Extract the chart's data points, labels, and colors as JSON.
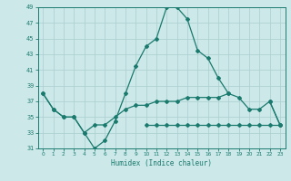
{
  "xlabel": "Humidex (Indice chaleur)",
  "x": [
    0,
    1,
    2,
    3,
    4,
    5,
    6,
    7,
    8,
    9,
    10,
    11,
    12,
    13,
    14,
    15,
    16,
    17,
    18,
    19,
    20,
    21,
    22,
    23
  ],
  "line1": [
    38,
    36,
    35,
    35,
    33,
    31,
    32,
    34.5,
    38,
    41.5,
    44,
    45,
    49,
    49,
    47.5,
    43.5,
    42.5,
    40,
    38,
    null,
    null,
    null,
    37,
    34
  ],
  "line2": [
    38,
    36,
    35,
    35,
    33,
    34,
    34,
    35,
    36,
    36.5,
    36.5,
    37,
    37,
    37,
    37.5,
    37.5,
    37.5,
    37.5,
    38,
    37.5,
    36,
    36,
    37,
    34
  ],
  "line3": [
    null,
    null,
    null,
    null,
    null,
    null,
    null,
    null,
    null,
    null,
    34,
    34,
    34,
    34,
    34,
    34,
    34,
    34,
    34,
    34,
    34,
    34,
    34,
    34
  ],
  "color": "#1a7a6e",
  "bg_color": "#cce8e8",
  "grid_color": "#aacece",
  "ylim": [
    31,
    49
  ],
  "xlim": [
    -0.5,
    23.5
  ],
  "yticks": [
    31,
    33,
    35,
    37,
    39,
    41,
    43,
    45,
    47,
    49
  ],
  "xticks": [
    0,
    1,
    2,
    3,
    4,
    5,
    6,
    7,
    8,
    9,
    10,
    11,
    12,
    13,
    14,
    15,
    16,
    17,
    18,
    19,
    20,
    21,
    22,
    23
  ]
}
